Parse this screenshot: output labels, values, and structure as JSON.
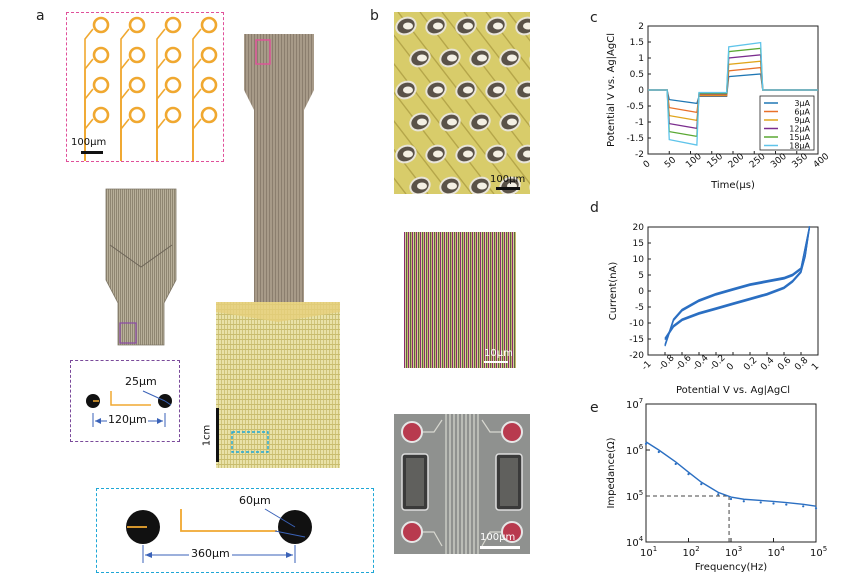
{
  "panels": {
    "a": "a",
    "b": "b",
    "c": "c",
    "d": "d",
    "e": "e"
  },
  "colors": {
    "pink_box": "#e0509a",
    "purple_box": "#7a4a9a",
    "cyan_box": "#1ea7d6",
    "trace": "#f0a830",
    "probe_shank": "#9a8f7a",
    "probe_pad": "#ded79a",
    "cv_line": "#2b6fc2",
    "eis_line": "#2b6fc2",
    "dimension_arrow": "#3a62b8"
  },
  "panel_a": {
    "scale_100um": "100μm",
    "dim_25um": "25μm",
    "dim_120um": "120μm",
    "dim_60um": "60μm",
    "dim_360um": "360μm",
    "scale_1cm": "1cm",
    "electrode_grid": {
      "rows": 4,
      "cols": 4
    }
  },
  "panel_b": {
    "scale_top": "100μm",
    "scale_mid": "10μm",
    "scale_bottom": "100μm"
  },
  "chart_data": [
    {
      "panel": "c",
      "type": "line",
      "xlabel": "Time(μs)",
      "ylabel": "Potential V vs. Ag|AgCl",
      "xlim": [
        0,
        400
      ],
      "ylim": [
        -2,
        2
      ],
      "xticks": [
        0,
        50,
        100,
        150,
        200,
        250,
        300,
        350,
        400
      ],
      "yticks": [
        -2,
        -1.5,
        -1,
        -0.5,
        0,
        0.5,
        1,
        1.5,
        2
      ],
      "legend_position": "lower-right",
      "series": [
        {
          "name": "3μA",
          "color": "#1f77b4",
          "cath": -0.3,
          "cath_end": -0.42,
          "inter": -0.2,
          "anod": 0.42,
          "anod_end": 0.5
        },
        {
          "name": "6μA",
          "color": "#e8702a",
          "cath": -0.55,
          "cath_end": -0.7,
          "inter": -0.18,
          "anod": 0.6,
          "anod_end": 0.7
        },
        {
          "name": "9μA",
          "color": "#e0a51b",
          "cath": -0.8,
          "cath_end": -0.95,
          "inter": -0.15,
          "anod": 0.8,
          "anod_end": 0.9
        },
        {
          "name": "12μA",
          "color": "#7b2d8e",
          "cath": -1.05,
          "cath_end": -1.2,
          "inter": -0.12,
          "anod": 1.0,
          "anod_end": 1.1
        },
        {
          "name": "15μA",
          "color": "#5aa832",
          "cath": -1.3,
          "cath_end": -1.45,
          "inter": -0.1,
          "anod": 1.2,
          "anod_end": 1.3
        },
        {
          "name": "18μA",
          "color": "#5fc4ea",
          "cath": -1.55,
          "cath_end": -1.72,
          "inter": -0.08,
          "anod": 1.35,
          "anod_end": 1.48
        }
      ]
    },
    {
      "panel": "d",
      "type": "line",
      "xlabel": "Potential V vs. Ag|AgCl",
      "ylabel": "Current(nA)",
      "xlim": [
        -1,
        1
      ],
      "ylim": [
        -20,
        20
      ],
      "xticks": [
        -1,
        -0.8,
        -0.6,
        -0.4,
        -0.2,
        0,
        0.2,
        0.4,
        0.6,
        0.8,
        1
      ],
      "yticks": [
        -20,
        -15,
        -10,
        -5,
        0,
        5,
        10,
        15,
        20
      ],
      "series": [
        {
          "name": "",
          "x": [
            -0.8,
            -0.7,
            -0.6,
            -0.4,
            -0.2,
            0,
            0.2,
            0.4,
            0.6,
            0.7,
            0.8,
            0.85,
            0.9
          ],
          "y": [
            -15,
            -11,
            -9,
            -7,
            -5.5,
            -4,
            -2.5,
            -1,
            1,
            3,
            6,
            11,
            20
          ]
        },
        {
          "name": "",
          "x": [
            0.9,
            0.8,
            0.7,
            0.6,
            0.4,
            0.2,
            0,
            -0.2,
            -0.4,
            -0.6,
            -0.7,
            -0.75,
            -0.8
          ],
          "y": [
            20,
            7,
            5,
            4,
            3,
            2,
            0.5,
            -1,
            -3,
            -6,
            -9,
            -13,
            -17
          ]
        }
      ]
    },
    {
      "panel": "e",
      "type": "line",
      "xlabel": "Frequency(Hz)",
      "ylabel": "Impedance(Ω)",
      "x_scale": "log",
      "y_scale": "log",
      "xlim": [
        10,
        100000
      ],
      "ylim": [
        10000,
        10000000
      ],
      "xticks": [
        10,
        100,
        1000,
        10000,
        100000
      ],
      "yticks": [
        10000,
        100000,
        1000000,
        10000000
      ],
      "reference_point": {
        "x": 900,
        "y": 100000
      },
      "series": [
        {
          "name": "",
          "x": [
            10,
            20,
            50,
            100,
            200,
            500,
            1000,
            2000,
            5000,
            10000,
            20000,
            50000,
            100000
          ],
          "y": [
            1500000,
            1000000,
            550000,
            330000,
            200000,
            120000,
            95000,
            85000,
            80000,
            76000,
            72000,
            66000,
            60000
          ]
        }
      ]
    }
  ]
}
